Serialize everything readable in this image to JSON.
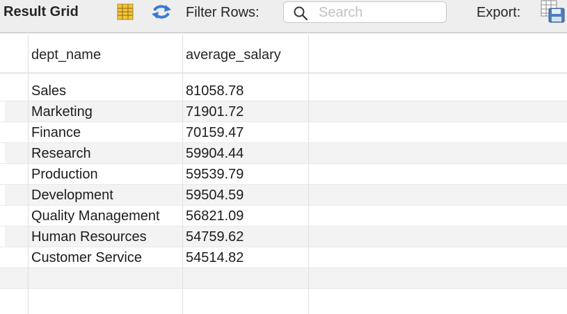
{
  "toolbar": {
    "title": "Result Grid",
    "filter_label": "Filter Rows:",
    "search_placeholder": "Search",
    "search_value": "",
    "export_label": "Export:"
  },
  "icons": {
    "grid_view": "grid-view-icon",
    "refresh": "refresh-icon",
    "search": "search-icon",
    "export": "export-icon"
  },
  "table": {
    "columns": [
      "dept_name",
      "average_salary"
    ],
    "rows": [
      [
        "Sales",
        "81058.78"
      ],
      [
        "Marketing",
        "71901.72"
      ],
      [
        "Finance",
        "70159.47"
      ],
      [
        "Research",
        "59904.44"
      ],
      [
        "Production",
        "59539.79"
      ],
      [
        "Development",
        "59504.59"
      ],
      [
        "Quality Management",
        "56821.09"
      ],
      [
        "Human Resources",
        "54759.62"
      ],
      [
        "Customer Service",
        "54514.82"
      ]
    ]
  },
  "colors": {
    "toolbar_bg": "#eeeeee",
    "alt_row": "#f3f3f3",
    "grid_line": "#e0e0e0",
    "refresh_blue": "#3b7bd6"
  }
}
